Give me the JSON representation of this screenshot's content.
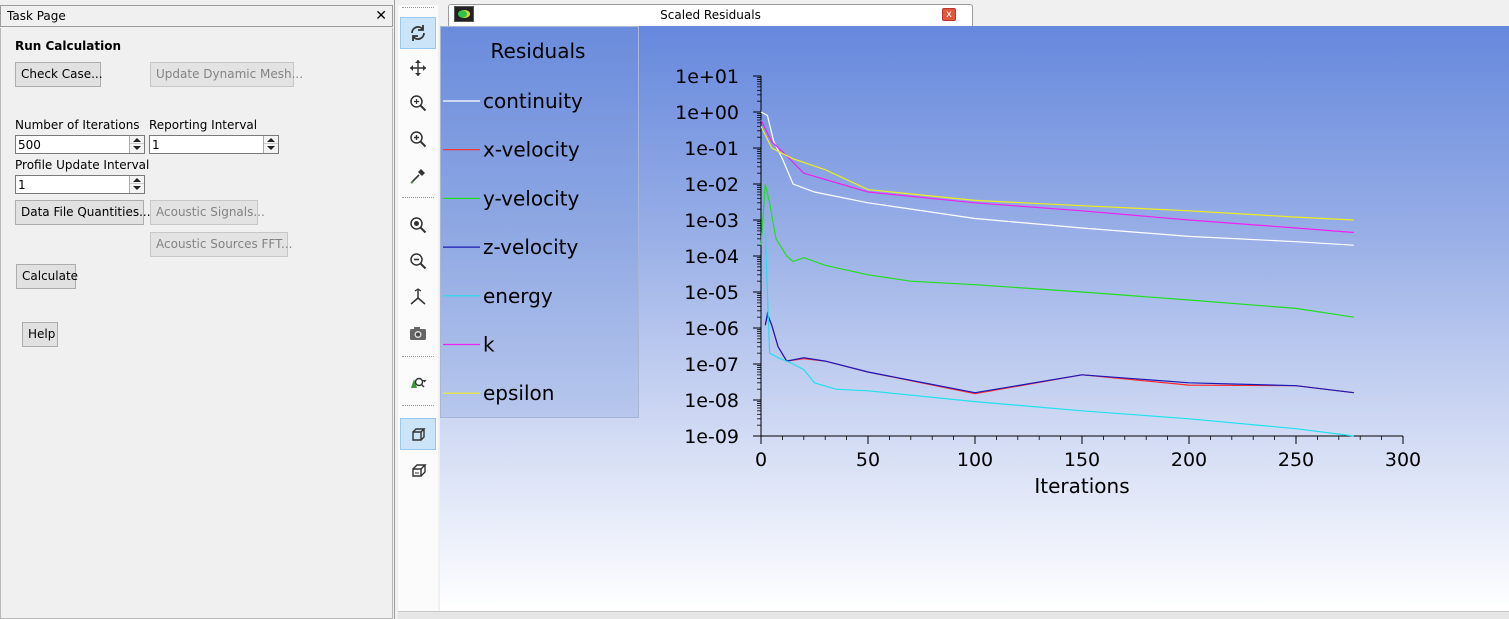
{
  "task_page": {
    "title": "Task Page",
    "close_glyph": "✕",
    "section_title": "Run Calculation",
    "check_case_label": "Check Case...",
    "update_dynamic_mesh_label": "Update Dynamic Mesh...",
    "num_iterations_label": "Number of Iterations",
    "num_iterations_value": "500",
    "reporting_interval_label": "Reporting Interval",
    "reporting_interval_value": "1",
    "profile_update_label": "Profile Update Interval",
    "profile_update_value": "1",
    "data_file_quantities_label": "Data File Quantities...",
    "acoustic_signals_label": "Acoustic Signals...",
    "acoustic_sources_label": "Acoustic Sources FFT...",
    "calculate_label": "Calculate",
    "help_label": "Help"
  },
  "toolbar": {
    "tools": [
      "rotate-icon",
      "pan-icon",
      "zoom-fit-icon",
      "zoom-in-region-icon",
      "probe-icon",
      "zoom-in-icon",
      "zoom-out-icon",
      "axes-icon",
      "camera-icon",
      "view-dropdown-icon",
      "cube-view-icon",
      "cube-outline-icon"
    ],
    "active_tools": [
      "rotate-icon",
      "cube-view-icon"
    ]
  },
  "graphics_window": {
    "tab_title": "Scaled Residuals",
    "close_glyph": "x"
  },
  "chart_data": {
    "type": "line",
    "legend_title": "Residuals",
    "legend_placement": "top-left",
    "xlabel": "Iterations",
    "ylabel": "",
    "xlim": [
      0,
      300
    ],
    "ylim": [
      1e-09,
      10
    ],
    "yscale": "log",
    "x_ticks": [
      "0",
      "50",
      "100",
      "150",
      "200",
      "250",
      "300"
    ],
    "y_ticks": [
      "1e+01",
      "1e+00",
      "1e-01",
      "1e-02",
      "1e-03",
      "1e-04",
      "1e-05",
      "1e-06",
      "1e-07",
      "1e-08",
      "1e-09"
    ],
    "series": [
      {
        "name": "continuity",
        "color": "#ffffff",
        "points": [
          [
            0,
            1.0
          ],
          [
            3,
            0.8
          ],
          [
            6,
            0.15
          ],
          [
            10,
            0.05
          ],
          [
            15,
            0.01
          ],
          [
            25,
            0.006
          ],
          [
            50,
            0.003
          ],
          [
            100,
            0.0011
          ],
          [
            150,
            0.0006
          ],
          [
            200,
            0.00035
          ],
          [
            250,
            0.00025
          ],
          [
            277,
            0.0002
          ]
        ]
      },
      {
        "name": "x-velocity",
        "color": "#ff2a2a",
        "points": [
          [
            2,
            1.2e-06
          ],
          [
            3,
            2.2e-06
          ],
          [
            5,
            1.2e-06
          ],
          [
            8,
            3e-07
          ],
          [
            12,
            1.2e-07
          ],
          [
            20,
            1.4e-07
          ],
          [
            30,
            1.2e-07
          ],
          [
            50,
            6e-08
          ],
          [
            100,
            1.5e-08
          ],
          [
            150,
            5e-08
          ],
          [
            200,
            2.6e-08
          ],
          [
            250,
            2.5e-08
          ],
          [
            277,
            1.6e-08
          ]
        ]
      },
      {
        "name": "y-velocity",
        "color": "#22dd22",
        "points": [
          [
            0,
            0.0002
          ],
          [
            2,
            0.01
          ],
          [
            4,
            0.003
          ],
          [
            7,
            0.0003
          ],
          [
            12,
            0.0001
          ],
          [
            15,
            7e-05
          ],
          [
            20,
            9e-05
          ],
          [
            30,
            5.5e-05
          ],
          [
            50,
            3e-05
          ],
          [
            70,
            2e-05
          ],
          [
            100,
            1.6e-05
          ],
          [
            150,
            1e-05
          ],
          [
            200,
            6e-06
          ],
          [
            250,
            3.5e-06
          ],
          [
            277,
            2e-06
          ]
        ]
      },
      {
        "name": "z-velocity",
        "color": "#1a1ab8",
        "points": [
          [
            2,
            1.2e-06
          ],
          [
            3,
            2.5e-06
          ],
          [
            5,
            1.2e-06
          ],
          [
            8,
            3e-07
          ],
          [
            12,
            1.2e-07
          ],
          [
            20,
            1.5e-07
          ],
          [
            30,
            1.2e-07
          ],
          [
            50,
            6e-08
          ],
          [
            100,
            1.6e-08
          ],
          [
            150,
            5e-08
          ],
          [
            200,
            3e-08
          ],
          [
            250,
            2.5e-08
          ],
          [
            277,
            1.6e-08
          ]
        ]
      },
      {
        "name": "energy",
        "color": "#22e0ee",
        "points": [
          [
            2,
            0.0005
          ],
          [
            3,
            1e-05
          ],
          [
            4,
            2e-07
          ],
          [
            8,
            1.5e-07
          ],
          [
            15,
            1e-07
          ],
          [
            20,
            7e-08
          ],
          [
            25,
            3e-08
          ],
          [
            35,
            2e-08
          ],
          [
            50,
            1.8e-08
          ],
          [
            100,
            9e-09
          ],
          [
            150,
            5e-09
          ],
          [
            200,
            3e-09
          ],
          [
            250,
            1.6e-09
          ],
          [
            277,
            1e-09
          ]
        ]
      },
      {
        "name": "k",
        "color": "#ee22ee",
        "points": [
          [
            0,
            0.6
          ],
          [
            5,
            0.15
          ],
          [
            10,
            0.08
          ],
          [
            20,
            0.02
          ],
          [
            50,
            0.006
          ],
          [
            100,
            0.003
          ],
          [
            150,
            0.0018
          ],
          [
            200,
            0.001
          ],
          [
            250,
            0.0006
          ],
          [
            277,
            0.00045
          ]
        ]
      },
      {
        "name": "epsilon",
        "color": "#eeee22",
        "points": [
          [
            0,
            0.4
          ],
          [
            5,
            0.1
          ],
          [
            15,
            0.05
          ],
          [
            30,
            0.025
          ],
          [
            50,
            0.007
          ],
          [
            100,
            0.0035
          ],
          [
            150,
            0.0025
          ],
          [
            200,
            0.0018
          ],
          [
            250,
            0.0012
          ],
          [
            277,
            0.001
          ]
        ]
      }
    ]
  }
}
